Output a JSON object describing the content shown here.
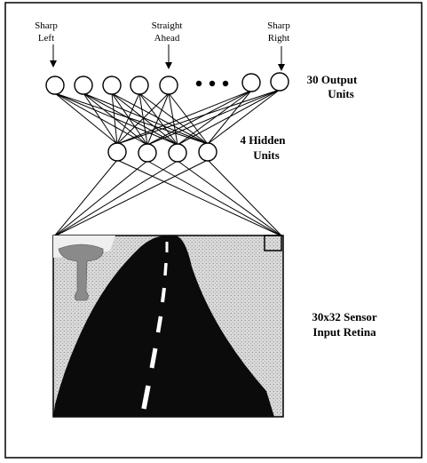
{
  "outputs": {
    "left_label": [
      "Sharp",
      "Left"
    ],
    "center_label": [
      "Straight",
      "Ahead"
    ],
    "right_label": [
      "Sharp",
      "Right"
    ],
    "layer_label": [
      "30 Output",
      "Units"
    ],
    "ellipsis": "•••"
  },
  "hidden": {
    "layer_label": [
      "4 Hidden",
      "Units"
    ]
  },
  "retina": {
    "layer_label": [
      "30x32 Sensor",
      "Input Retina"
    ]
  },
  "colors": {
    "ink": "#000000",
    "paper": "#ffffff",
    "road": "#0b0b0b",
    "ground": "#d6d6d6",
    "sky": "#f2f2f2",
    "tree": "#7a7a7a"
  }
}
